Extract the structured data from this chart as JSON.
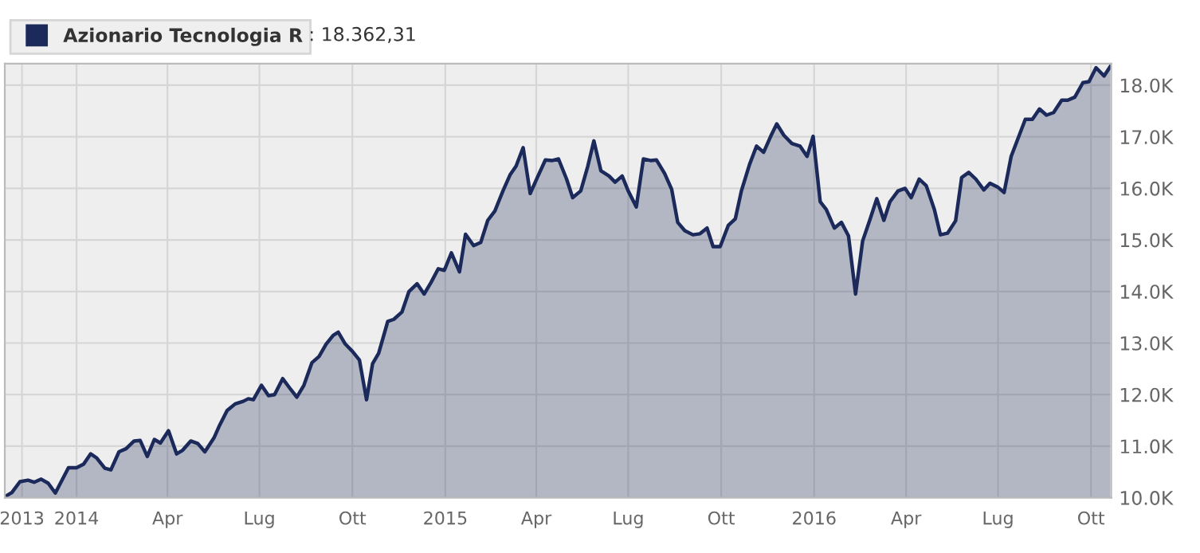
{
  "chart_data": {
    "type": "area",
    "legend": "top",
    "grid": true,
    "annotations": [
      ": 18.362,31"
    ],
    "xlim": [
      "2013-10-22",
      "2016-10-21"
    ],
    "xticks": [
      {
        "value": "2013-11-08",
        "label": "2013"
      },
      {
        "value": "2014-01-01",
        "label": "2014"
      },
      {
        "value": "2014-04-01",
        "label": "Apr"
      },
      {
        "value": "2014-07-01",
        "label": "Lug"
      },
      {
        "value": "2014-10-01",
        "label": "Ott"
      },
      {
        "value": "2015-01-01",
        "label": "2015"
      },
      {
        "value": "2015-04-01",
        "label": "Apr"
      },
      {
        "value": "2015-07-01",
        "label": "Lug"
      },
      {
        "value": "2015-10-01",
        "label": "Ott"
      },
      {
        "value": "2016-01-01",
        "label": "2016"
      },
      {
        "value": "2016-04-01",
        "label": "Apr"
      },
      {
        "value": "2016-07-01",
        "label": "Lug"
      },
      {
        "value": "2016-10-01",
        "label": "Ott"
      }
    ],
    "ylim": [
      10000,
      18420
    ],
    "yticks": [
      {
        "value": 10000,
        "label": "10.0K"
      },
      {
        "value": 11000,
        "label": "11.0K"
      },
      {
        "value": 12000,
        "label": "12.0K"
      },
      {
        "value": 13000,
        "label": "13.0K"
      },
      {
        "value": 14000,
        "label": "14.0K"
      },
      {
        "value": 15000,
        "label": "15.0K"
      },
      {
        "value": 16000,
        "label": "16.0K"
      },
      {
        "value": 17000,
        "label": "17.0K"
      },
      {
        "value": 18000,
        "label": "18.0K"
      }
    ],
    "x": [
      "2013-10-23",
      "2013-10-29",
      "2013-11-06",
      "2013-11-14",
      "2013-11-20",
      "2013-11-27",
      "2013-12-04",
      "2013-12-11",
      "2013-12-24",
      "2014-01-01",
      "2014-01-08",
      "2014-01-15",
      "2014-01-21",
      "2014-01-29",
      "2014-02-04",
      "2014-02-12",
      "2014-02-19",
      "2014-02-27",
      "2014-03-05",
      "2014-03-12",
      "2014-03-19",
      "2014-03-25",
      "2014-04-02",
      "2014-04-10",
      "2014-04-16",
      "2014-04-24",
      "2014-05-01",
      "2014-05-08",
      "2014-05-17",
      "2014-05-22",
      "2014-05-30",
      "2014-06-07",
      "2014-06-15",
      "2014-06-20",
      "2014-06-25",
      "2014-07-03",
      "2014-07-10",
      "2014-07-16",
      "2014-07-24",
      "2014-08-01",
      "2014-08-07",
      "2014-08-14",
      "2014-08-22",
      "2014-08-29",
      "2014-09-05",
      "2014-09-12",
      "2014-09-17",
      "2014-09-24",
      "2014-10-01",
      "2014-10-08",
      "2014-10-15",
      "2014-10-21",
      "2014-10-27",
      "2014-11-05",
      "2014-11-11",
      "2014-11-19",
      "2014-11-26",
      "2014-12-04",
      "2014-12-11",
      "2014-12-18",
      "2014-12-25",
      "2014-12-31",
      "2015-01-07",
      "2015-01-15",
      "2015-01-21",
      "2015-01-29",
      "2015-02-05",
      "2015-02-12",
      "2015-02-19",
      "2015-02-27",
      "2015-03-06",
      "2015-03-12",
      "2015-03-19",
      "2015-03-26",
      "2015-04-02",
      "2015-04-10",
      "2015-04-17",
      "2015-04-23",
      "2015-05-01",
      "2015-05-07",
      "2015-05-15",
      "2015-05-22",
      "2015-05-28",
      "2015-06-04",
      "2015-06-12",
      "2015-06-18",
      "2015-06-25",
      "2015-07-01",
      "2015-07-09",
      "2015-07-16",
      "2015-07-23",
      "2015-07-29",
      "2015-08-06",
      "2015-08-13",
      "2015-08-19",
      "2015-08-26",
      "2015-09-03",
      "2015-09-10",
      "2015-09-17",
      "2015-09-23",
      "2015-09-30",
      "2015-10-08",
      "2015-10-15",
      "2015-10-21",
      "2015-10-29",
      "2015-11-05",
      "2015-11-12",
      "2015-11-19",
      "2015-11-25",
      "2015-12-02",
      "2015-12-10",
      "2015-12-18",
      "2015-12-25",
      "2015-12-31",
      "2016-01-07",
      "2016-01-13",
      "2016-01-21",
      "2016-01-28",
      "2016-02-04",
      "2016-02-11",
      "2016-02-18",
      "2016-02-25",
      "2016-03-03",
      "2016-03-10",
      "2016-03-16",
      "2016-03-24",
      "2016-03-31",
      "2016-04-06",
      "2016-04-14",
      "2016-04-21",
      "2016-04-29",
      "2016-05-05",
      "2016-05-12",
      "2016-05-20",
      "2016-05-26",
      "2016-06-02",
      "2016-06-09",
      "2016-06-17",
      "2016-06-23",
      "2016-07-01",
      "2016-07-07",
      "2016-07-14",
      "2016-07-21",
      "2016-07-28",
      "2016-08-04",
      "2016-08-11",
      "2016-08-18",
      "2016-08-25",
      "2016-09-02",
      "2016-09-08",
      "2016-09-15",
      "2016-09-23",
      "2016-09-29",
      "2016-10-06",
      "2016-10-14",
      "2016-10-20"
    ],
    "series": [
      {
        "name": "Azionario Tecnologia R",
        "color": "#1b2a5a",
        "values": [
          10030,
          10100,
          10310,
          10340,
          10300,
          10360,
          10280,
          10090,
          10580,
          10580,
          10650,
          10850,
          10770,
          10570,
          10540,
          10890,
          10950,
          11100,
          11110,
          10800,
          11130,
          11060,
          11300,
          10850,
          10920,
          11100,
          11050,
          10890,
          11160,
          11380,
          11690,
          11820,
          11870,
          11920,
          11900,
          12180,
          11980,
          12000,
          12310,
          12100,
          11950,
          12180,
          12620,
          12740,
          12980,
          13150,
          13210,
          12980,
          12840,
          12670,
          11900,
          12600,
          12800,
          13420,
          13460,
          13600,
          14000,
          14150,
          13950,
          14180,
          14440,
          14410,
          14750,
          14380,
          15110,
          14890,
          14950,
          15380,
          15560,
          15950,
          16260,
          16430,
          16790,
          15900,
          16210,
          16550,
          16540,
          16570,
          16180,
          15820,
          15950,
          16430,
          16920,
          16340,
          16240,
          16120,
          16240,
          15950,
          15640,
          16570,
          16540,
          16550,
          16290,
          15980,
          15340,
          15180,
          15100,
          15120,
          15230,
          14870,
          14870,
          15280,
          15410,
          15950,
          16460,
          16820,
          16700,
          17010,
          17250,
          17030,
          16870,
          16820,
          16620,
          17010,
          15740,
          15590,
          15230,
          15340,
          15080,
          13950,
          14980,
          15380,
          15800,
          15380,
          15740,
          15950,
          16000,
          15820,
          16180,
          16050,
          15590,
          15100,
          15130,
          15370,
          16210,
          16310,
          16180,
          15970,
          16100,
          16020,
          15920,
          16620,
          16980,
          17340,
          17340,
          17540,
          17420,
          17470,
          17710,
          17710,
          17770,
          18050,
          18070,
          18340,
          18180,
          18360
        ]
      }
    ]
  }
}
